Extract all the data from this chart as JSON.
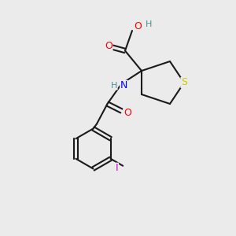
{
  "bg_color": "#ebebeb",
  "bond_color": "#1a1a1a",
  "bond_lw": 1.5,
  "atom_colors": {
    "O": "#ff0000",
    "N": "#0000ff",
    "S": "#cccc00",
    "I": "#cc00cc",
    "H": "#4a9090"
  },
  "font_size": 9,
  "font_size_small": 8
}
